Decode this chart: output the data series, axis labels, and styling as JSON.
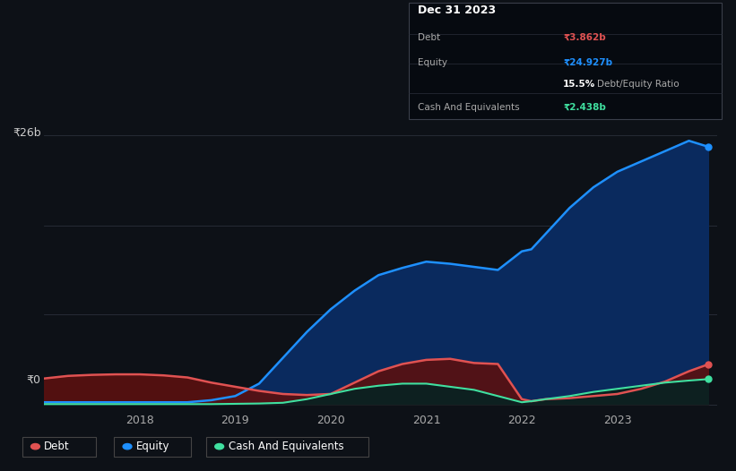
{
  "background_color": "#0d1117",
  "plot_bg_color": "#0d1117",
  "grid_color": "#2a2f3a",
  "ylabel_top": "₹26b",
  "ylabel_bottom": "₹0",
  "tooltip": {
    "date": "Dec 31 2023",
    "debt_label": "Debt",
    "debt_value": "₹3.862b",
    "equity_label": "Equity",
    "equity_value": "₹24.927b",
    "ratio_value": "15.5%",
    "ratio_label": "Debt/Equity Ratio",
    "cash_label": "Cash And Equivalents",
    "cash_value": "₹2.438b"
  },
  "legend": [
    {
      "label": "Debt",
      "color": "#e05252"
    },
    {
      "label": "Equity",
      "color": "#1e90ff"
    },
    {
      "label": "Cash And Equivalents",
      "color": "#40e0a0"
    }
  ],
  "debt_color": "#e05252",
  "equity_color": "#1e90ff",
  "cash_color": "#40e0a0",
  "debt_fill_color": "#5a1010",
  "equity_fill_color": "#0a2a5e",
  "cash_fill_color": "#0d2020",
  "time": [
    2017.0,
    2017.25,
    2017.5,
    2017.75,
    2018.0,
    2018.25,
    2018.5,
    2018.75,
    2019.0,
    2019.25,
    2019.5,
    2019.75,
    2020.0,
    2020.25,
    2020.5,
    2020.75,
    2021.0,
    2021.25,
    2021.5,
    2021.75,
    2022.0,
    2022.1,
    2022.25,
    2022.5,
    2022.75,
    2023.0,
    2023.25,
    2023.5,
    2023.75,
    2023.95
  ],
  "debt": [
    2.5,
    2.75,
    2.85,
    2.9,
    2.9,
    2.8,
    2.6,
    2.1,
    1.7,
    1.3,
    1.0,
    0.9,
    1.0,
    2.1,
    3.2,
    3.9,
    4.3,
    4.4,
    4.0,
    3.9,
    0.5,
    0.3,
    0.5,
    0.6,
    0.8,
    1.0,
    1.5,
    2.2,
    3.2,
    3.862
  ],
  "equity": [
    0.2,
    0.2,
    0.2,
    0.2,
    0.2,
    0.2,
    0.2,
    0.4,
    0.8,
    2.0,
    4.5,
    7.0,
    9.2,
    11.0,
    12.5,
    13.2,
    13.8,
    13.6,
    13.3,
    13.0,
    14.8,
    15.0,
    16.5,
    19.0,
    21.0,
    22.5,
    23.5,
    24.5,
    25.5,
    24.927
  ],
  "cash": [
    0.02,
    0.02,
    0.02,
    0.02,
    0.02,
    0.02,
    0.02,
    0.02,
    0.05,
    0.08,
    0.15,
    0.5,
    1.0,
    1.5,
    1.8,
    2.0,
    2.0,
    1.7,
    1.4,
    0.8,
    0.2,
    0.3,
    0.5,
    0.8,
    1.2,
    1.5,
    1.8,
    2.1,
    2.3,
    2.438
  ]
}
